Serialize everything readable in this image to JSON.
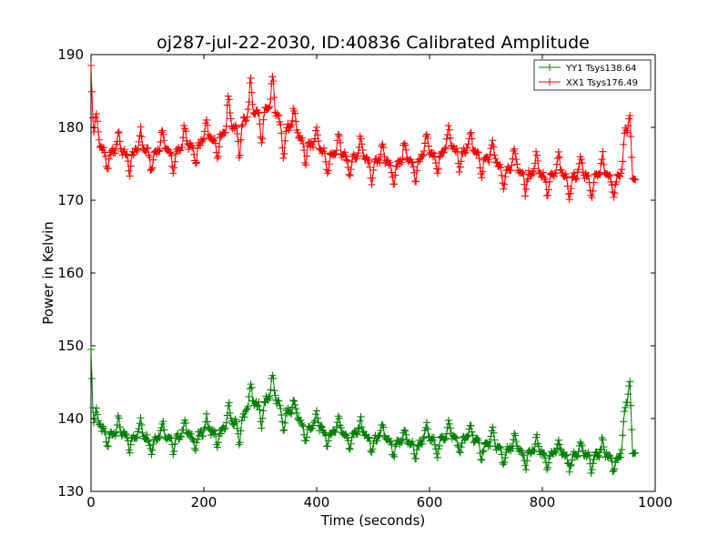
{
  "chart_data": {
    "type": "line",
    "title": "oj287-jul-22-2030, ID:40836 Calibrated Amplitude",
    "xlabel": "Time (seconds)",
    "ylabel": "Power in Kelvin",
    "xlim": [
      0,
      1000
    ],
    "ylim": [
      130,
      190
    ],
    "xticks": [
      "0",
      "200",
      "400",
      "600",
      "800",
      "1000"
    ],
    "yticks": [
      "130",
      "140",
      "150",
      "160",
      "170",
      "180",
      "190"
    ],
    "grid": false,
    "legend_position": "top-right",
    "marker": "plus",
    "series": [
      {
        "name": "YY1 Tsys138.64",
        "color": "#008000",
        "base_points": [
          [
            0,
            149.5
          ],
          [
            4,
            139.5
          ],
          [
            20,
            138.5
          ],
          [
            50,
            137.8
          ],
          [
            100,
            137.5
          ],
          [
            150,
            137.5
          ],
          [
            200,
            138.0
          ],
          [
            240,
            138.5
          ],
          [
            270,
            140.5
          ],
          [
            300,
            142.5
          ],
          [
            320,
            142.8
          ],
          [
            350,
            141.0
          ],
          [
            380,
            139.0
          ],
          [
            420,
            138.3
          ],
          [
            480,
            137.8
          ],
          [
            520,
            137.0
          ],
          [
            560,
            136.5
          ],
          [
            600,
            137.0
          ],
          [
            640,
            137.5
          ],
          [
            680,
            137.0
          ],
          [
            720,
            136.0
          ],
          [
            760,
            135.5
          ],
          [
            800,
            135.2
          ],
          [
            850,
            135.0
          ],
          [
            900,
            135.0
          ],
          [
            940,
            134.8
          ],
          [
            955,
            145.5
          ],
          [
            960,
            135.2
          ],
          [
            965,
            135.3
          ]
        ],
        "spike_amplitude": 2.2
      },
      {
        "name": "XX1 Tsys176.49",
        "color": "#ff0000",
        "base_points": [
          [
            0,
            188.5
          ],
          [
            4,
            179.5
          ],
          [
            20,
            177.0
          ],
          [
            50,
            176.5
          ],
          [
            100,
            176.8
          ],
          [
            150,
            176.8
          ],
          [
            200,
            178.0
          ],
          [
            240,
            179.5
          ],
          [
            270,
            181.0
          ],
          [
            300,
            182.5
          ],
          [
            320,
            182.3
          ],
          [
            350,
            180.0
          ],
          [
            380,
            178.0
          ],
          [
            420,
            176.5
          ],
          [
            480,
            175.8
          ],
          [
            520,
            175.0
          ],
          [
            560,
            175.2
          ],
          [
            600,
            176.2
          ],
          [
            640,
            177.2
          ],
          [
            680,
            176.5
          ],
          [
            720,
            175.0
          ],
          [
            760,
            174.0
          ],
          [
            800,
            173.5
          ],
          [
            850,
            173.3
          ],
          [
            900,
            173.3
          ],
          [
            940,
            173.2
          ],
          [
            955,
            182.0
          ],
          [
            960,
            173.0
          ],
          [
            965,
            172.8
          ]
        ],
        "spike_amplitude": 3.0
      }
    ]
  }
}
